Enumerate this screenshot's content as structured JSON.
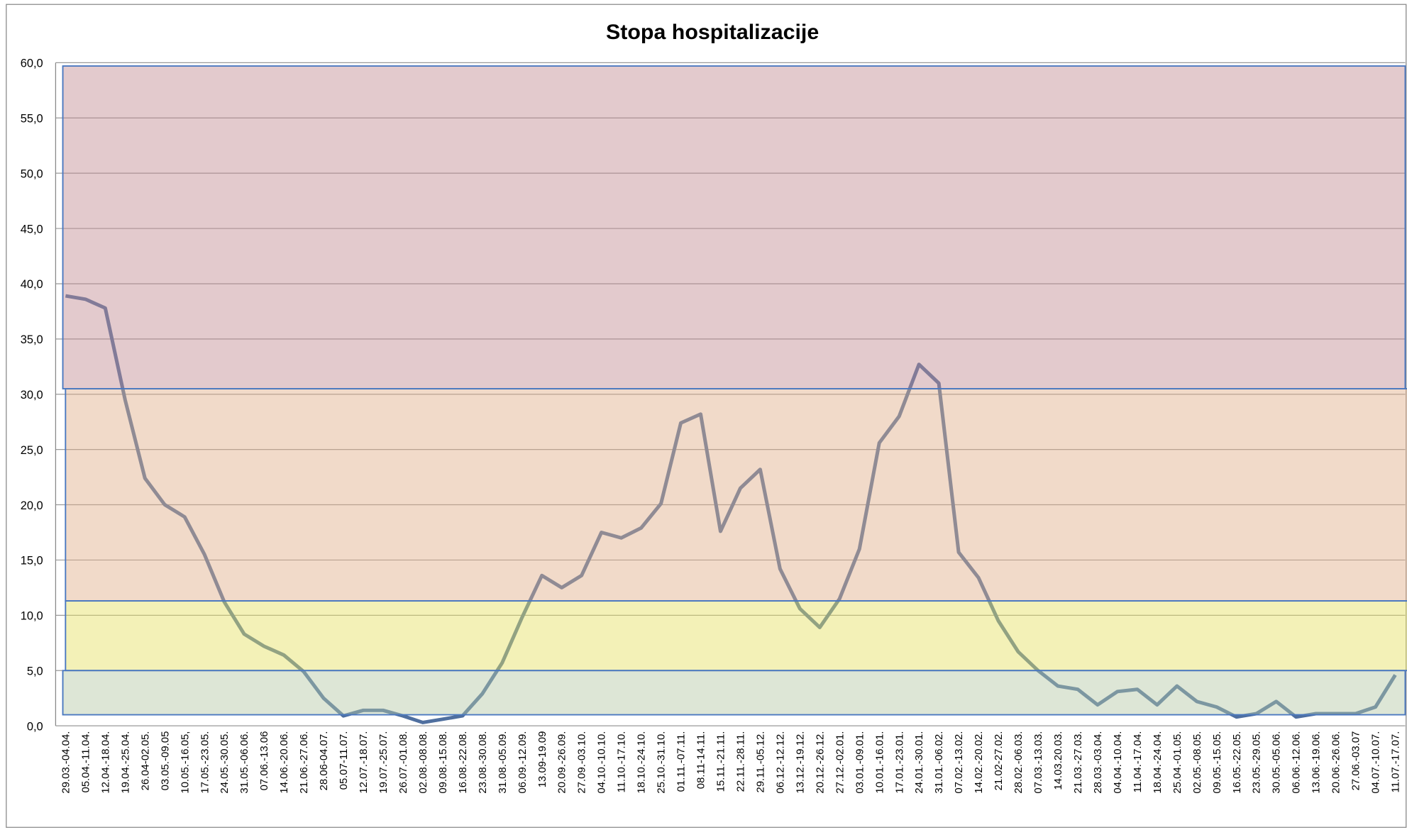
{
  "chart_data": {
    "type": "line",
    "title": "Stopa hospitalizacije",
    "categories": [
      "29.03.-04.04.",
      "05.04.-11.04.",
      "12.04.-18.04.",
      "19.04.-25.04.",
      "26.04-02.05.",
      "03.05.-09.05",
      "10.05.-16.05,",
      "17.05.-23.05.",
      "24.05.-30.05.",
      "31.05.-06.06.",
      "07.06.-13.06",
      "14.06.-20.06.",
      "21.06.-27.06.",
      "28.06-04.07.",
      "05.07-11.07.",
      "12.07.-18.07.",
      "19.07.-25.07.",
      "26.07.-01.08.",
      "02.08.-08.08.",
      "09.08.-15.08.",
      "16.08.-22.08.",
      "23.08.-30.08.",
      "31.08.-05.09.",
      "06.09.-12.09.",
      "13.09-19.09",
      "20.09.-26.09.",
      "27.09.-03.10.",
      "04.10.-10.10.",
      "11.10.-17.10.",
      "18.10.-24.10.",
      "25.10.-31.10.",
      "01.11.-07.11.",
      "08.11-14.11.",
      "15.11.-21.11.",
      "22.11.-28.11.",
      "29.11.-05.12.",
      "06.12.-12.12.",
      "13.12.-19.12.",
      "20.12.-26.12.",
      "27.12.-02.01.",
      "03.01.-09.01.",
      "10.01.-16.01.",
      "17.01.-23.01.",
      "24.01.-30.01.",
      "31.01.-06.02.",
      "07.02.-13.02.",
      "14.02.-20.02.",
      "21.02-27.02.",
      "28.02.-06.03.",
      "07.03.-13.03.",
      "14.03.20.03.",
      "21.03.-27.03.",
      "28.03.-03.04.",
      "04.04.-10.04.",
      "11.04.-17.04.",
      "18.04.-24.04.",
      "25.04.-01.05.",
      "02.05.-08.05.",
      "09.05.-15.05.",
      "16.05.-22.05.",
      "23.05.-29.05.",
      "30.05.-05.06.",
      "06.06.-12.06.",
      "13.06.-19.06.",
      "20.06.-26.06.",
      "27.06.-03.07",
      "04.07.-10.07.",
      "11.07.-17.07."
    ],
    "series": [
      {
        "color": "#4f6f9f",
        "values": [
          38.9,
          38.6,
          37.8,
          29.5,
          22.4,
          20.0,
          18.9,
          15.5,
          11.2,
          8.3,
          7.2,
          6.4,
          4.9,
          2.5,
          0.9,
          1.4,
          1.4,
          0.9,
          0.3,
          0.6,
          0.9,
          2.9,
          5.7,
          9.8,
          13.6,
          12.5,
          13.6,
          17.5,
          17.0,
          17.9,
          20.1,
          27.4,
          28.2,
          17.6,
          21.5,
          23.2,
          14.2,
          10.6,
          8.9,
          11.5,
          16.0,
          25.6,
          28.0,
          32.7,
          31.0,
          15.7,
          13.4,
          9.5,
          6.7,
          5.0,
          3.6,
          3.3,
          1.9,
          3.1,
          3.3,
          1.9,
          3.6,
          2.2,
          1.7,
          0.8,
          1.1,
          2.2,
          0.8,
          1.1,
          1.1,
          1.1,
          1.7,
          4.6
        ]
      }
    ],
    "bands": [
      {
        "from": 30.5,
        "to": 59.7,
        "color": "#c08a90"
      },
      {
        "from": 11.3,
        "to": 30.5,
        "color": "#e0ac88"
      },
      {
        "from": 5.0,
        "to": 11.3,
        "color": "#e4e060"
      },
      {
        "from": 1.0,
        "to": 5.0,
        "color": "#b4c8a4"
      }
    ],
    "ylim": [
      0,
      60
    ],
    "yticks": [
      {
        "value": 0,
        "label": "0,0"
      },
      {
        "value": 5,
        "label": "5,0"
      },
      {
        "value": 10,
        "label": "10,0"
      },
      {
        "value": 15,
        "label": "15,0"
      },
      {
        "value": 20,
        "label": "20,0"
      },
      {
        "value": 25,
        "label": "25,0"
      },
      {
        "value": 30,
        "label": "30,0"
      },
      {
        "value": 35,
        "label": "35,0"
      },
      {
        "value": 40,
        "label": "40,0"
      },
      {
        "value": 45,
        "label": "45,0"
      },
      {
        "value": 50,
        "label": "50,0"
      },
      {
        "value": 55,
        "label": "55,0"
      },
      {
        "value": 60,
        "label": "60,0"
      }
    ],
    "grid": true
  }
}
